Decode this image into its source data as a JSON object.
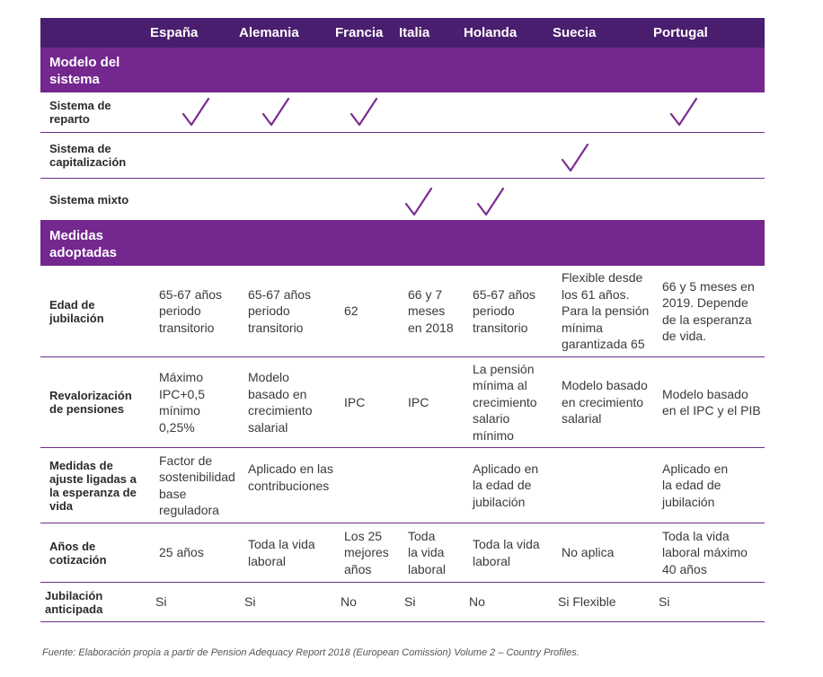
{
  "header": {
    "columns": [
      "España",
      "Alemania",
      "Francia",
      "Italia",
      "Holanda",
      "Suecia",
      "Portugal"
    ]
  },
  "sections": {
    "modelo": "Modelo del\nsistema",
    "medidas": "Medidas\nadoptadas"
  },
  "modelo_rows": [
    {
      "label": "Sistema de\nreparto",
      "checks": [
        "España",
        "Alemania",
        "Francia",
        "Portugal"
      ]
    },
    {
      "label": "Sistema de\ncapitalización",
      "checks": [
        "Suecia"
      ]
    },
    {
      "label": "Sistema mixto",
      "checks": [
        "Italia",
        "Holanda"
      ]
    }
  ],
  "medidas_rows": [
    {
      "label": "Edad de\njubilación",
      "values": [
        "65-67 años\nperiodo\ntransitorio",
        "65-67 años\nperiodo\ntransitorio",
        "62",
        "66 y 7\nmeses\nen 2018",
        "65-67 años\nperiodo\ntransitorio",
        "Flexible desde\nlos 61 años.\nPara la pensión\nmínima\ngarantizada 65",
        "66 y 5 meses en\n2019. Depende\nde la esperanza\nde vida."
      ]
    },
    {
      "label": "Revalorización\nde pensiones",
      "values": [
        "Máximo\nIPC+0,5\nmínimo\n0,25%",
        "Modelo\nbasado en\ncrecimiento\nsalarial",
        "IPC",
        "IPC",
        "La pensión\nmínima al\ncrecimiento\nsalario\nmínimo",
        "Modelo basado\nen crecimiento\nsalarial",
        "Modelo basado\nen el IPC y el PIB"
      ]
    },
    {
      "label": "Medidas de\najuste ligadas a\nla esperanza de\nvida",
      "values": [
        "Factor de\nsostenibilidad\nbase\nreguladora",
        "Aplicado en las\ncontribuciones",
        "",
        "",
        "Aplicado en\nla edad de\njubilación",
        "",
        "Aplicado  en\nla edad de\njubilación"
      ]
    },
    {
      "label": "Años de\ncotización",
      "values": [
        "25 años",
        "Toda la vida\nlaboral",
        "Los 25\nmejores\naños",
        "Toda\nla vida\nlaboral",
        "Toda la vida\nlaboral",
        "No aplica",
        "Toda la vida\nlaboral máximo\n40 años"
      ]
    },
    {
      "label": "Jubilación\nanticipada",
      "values": [
        "Si",
        "Si",
        "No",
        "Si",
        "No",
        "Si Flexible",
        "Si"
      ]
    }
  ],
  "source": "Fuente: Elaboración propia a partir de Pension Adequacy Report 2018 (European Comission) Volume 2 – Country Profiles."
}
